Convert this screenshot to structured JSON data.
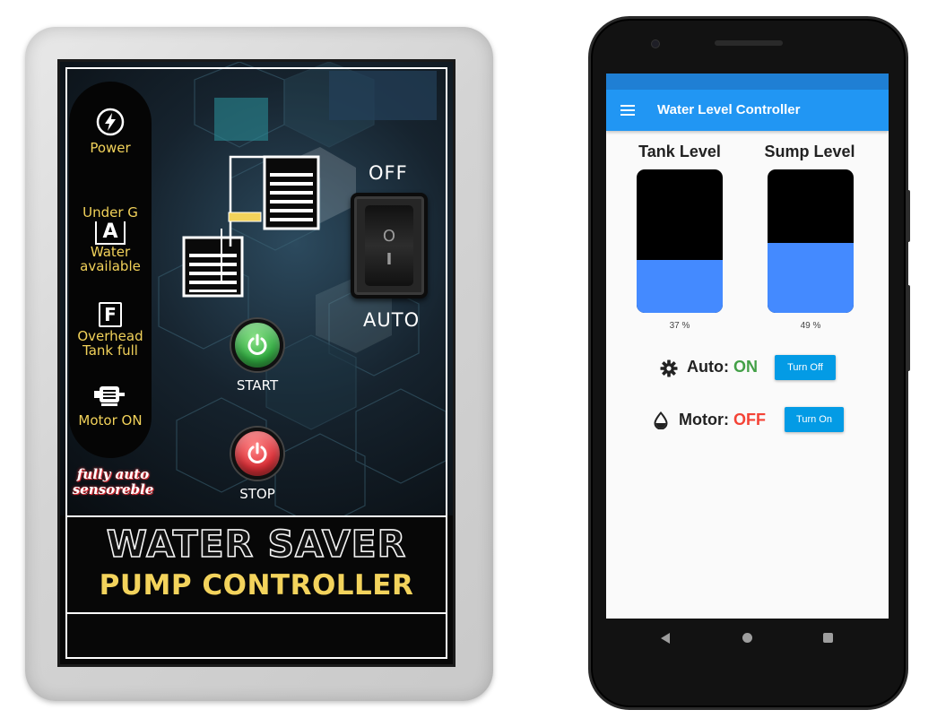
{
  "controller": {
    "indicators": {
      "power": "Power",
      "under_g": "Under G",
      "under_badge": "A",
      "water_available": [
        "Water",
        "available"
      ],
      "full_badge": "F",
      "tank_full": [
        "Overhead",
        "Tank full"
      ],
      "motor_on": "Motor ON"
    },
    "tagline": [
      "fully auto",
      "sensoreble"
    ],
    "switch": {
      "off_label": "OFF",
      "auto_label": "AUTO",
      "mark_top": "O",
      "mark_bottom": "I"
    },
    "buttons": {
      "start": "START",
      "stop": "STOP"
    },
    "title_main": "WATER SAVER",
    "title_sub": "PUMP CONTROLLER",
    "colors": {
      "indicator_text": "#f2d25a",
      "start_button": "#34b044",
      "stop_button": "#e0323a"
    },
    "icons": [
      "lightning-icon",
      "cpu-motor-icon",
      "power-symbol-icon",
      "tank-icon"
    ]
  },
  "app": {
    "title": "Water Level Controller",
    "tank_label": "Tank Level",
    "sump_label": "Sump Level",
    "tank_percent_text": "37 %",
    "sump_percent_text": "49 %",
    "tank_level": 37,
    "sump_level": 49,
    "auto": {
      "label": "Auto: ",
      "state": "ON",
      "button": "Turn Off"
    },
    "motor": {
      "label": "Motor: ",
      "state": "OFF",
      "button": "Turn On"
    },
    "colors": {
      "app_bar": "#2196f3",
      "water": "#448aff",
      "on": "#43a047",
      "off": "#f44336",
      "button": "#039be5"
    },
    "icons": [
      "menu-icon",
      "gear-icon",
      "water-drop-icon",
      "back-icon",
      "home-icon",
      "recent-apps-icon"
    ]
  }
}
